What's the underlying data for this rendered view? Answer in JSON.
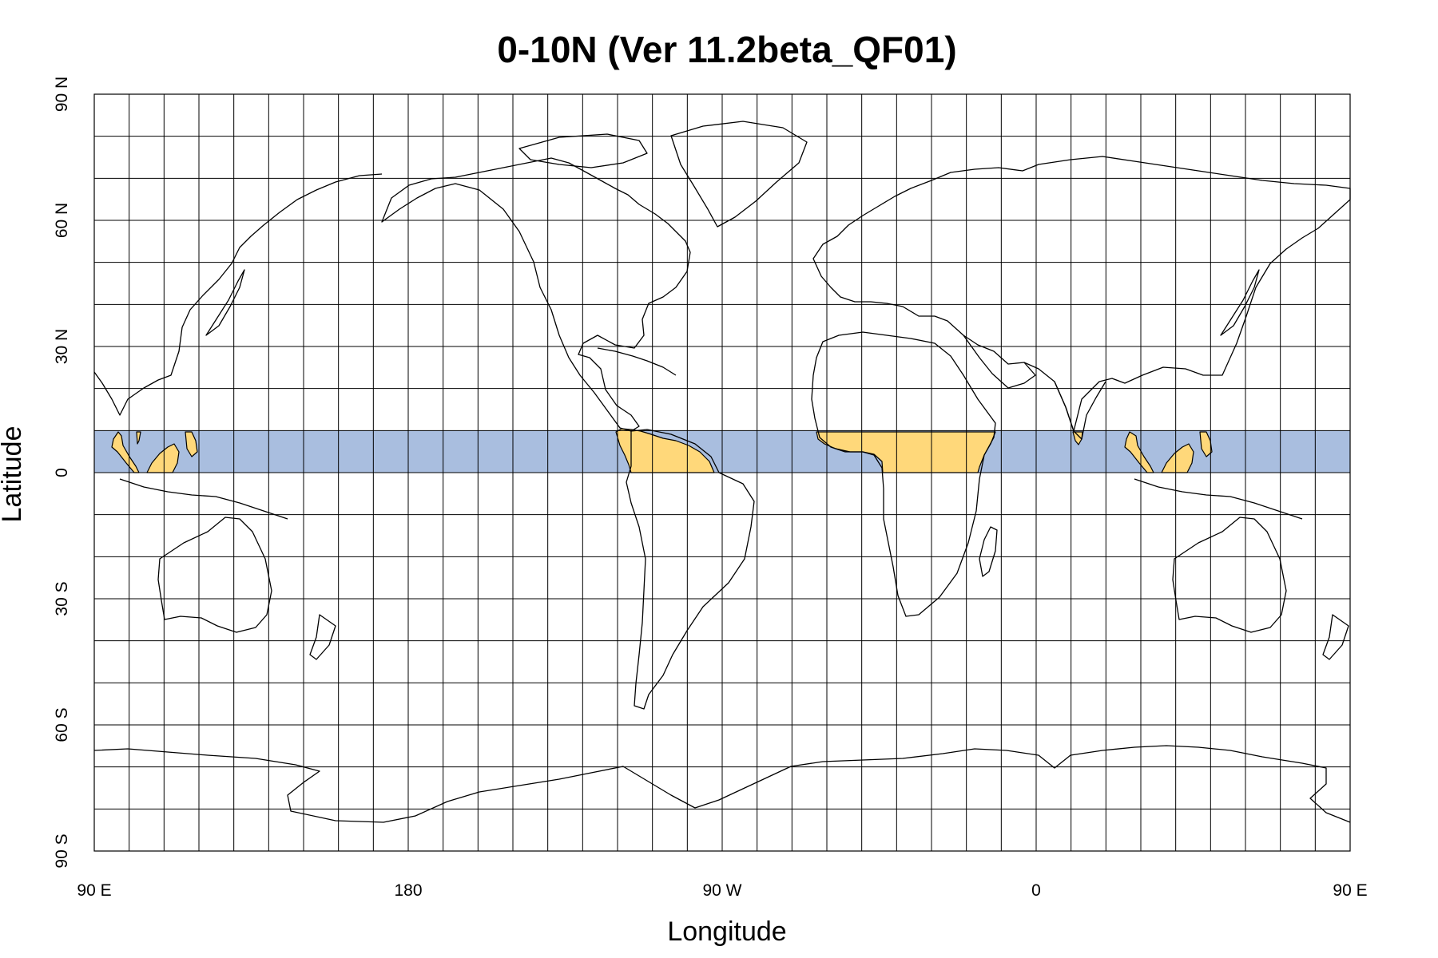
{
  "title": "0-10N (Ver 11.2beta_QF01)",
  "x_axis": {
    "label": "Longitude",
    "ticks": [
      "90 E",
      "180",
      "90 W",
      "0",
      "90 E",
      "180"
    ]
  },
  "y_axis": {
    "label": "Latitude",
    "ticks": [
      "90 N",
      "60 N",
      "30 N",
      "0",
      "30 S",
      "60 S",
      "90 S"
    ]
  },
  "map": {
    "projection": "equirectangular",
    "lon_span_deg": [
      90,
      450
    ],
    "lat_span_deg": [
      -90,
      90
    ],
    "grid_spacing_deg": 10,
    "highlight_band": {
      "lat_min": 0,
      "lat_max": 10
    }
  },
  "colors": {
    "band": "#a9bedf",
    "land_in_band": "#ffd87a",
    "coastline": "#000000",
    "grid": "#000000"
  }
}
